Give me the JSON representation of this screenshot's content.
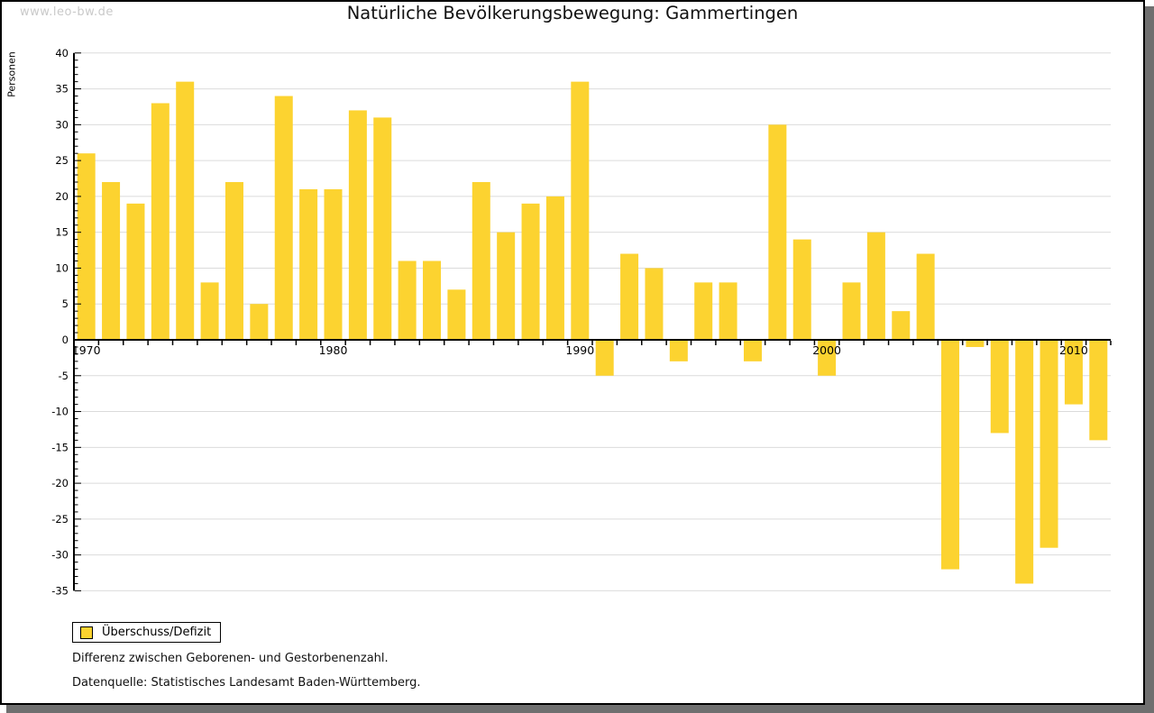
{
  "watermark": "www.leo-bw.de",
  "chart_data": {
    "type": "bar",
    "title": "Natürliche Bevölkerungsbewegung: Gammertingen",
    "ylabel": "Personen",
    "xlabel": "",
    "legend_label": "Überschuss/Defizit",
    "legend_position": "bottom-left",
    "grid": true,
    "bar_color": "#FCD330",
    "gridline_color": "#dbdbdb",
    "ylim": [
      -35,
      40
    ],
    "ytick_step": 5,
    "yticks": [
      -35,
      -30,
      -25,
      -20,
      -15,
      -10,
      -5,
      0,
      5,
      10,
      15,
      20,
      25,
      30,
      35,
      40
    ],
    "xticks_labeled": [
      1970,
      1980,
      1990,
      2000,
      2010
    ],
    "categories": [
      1970,
      1971,
      1972,
      1973,
      1974,
      1975,
      1976,
      1977,
      1978,
      1979,
      1980,
      1981,
      1982,
      1983,
      1984,
      1985,
      1986,
      1987,
      1988,
      1989,
      1990,
      1991,
      1992,
      1993,
      1994,
      1995,
      1996,
      1997,
      1998,
      1999,
      2000,
      2001,
      2002,
      2003,
      2004,
      2005,
      2006,
      2007,
      2008,
      2009,
      2010,
      2011
    ],
    "values": [
      26,
      22,
      19,
      33,
      36,
      8,
      22,
      5,
      34,
      21,
      21,
      32,
      31,
      11,
      11,
      7,
      22,
      15,
      19,
      20,
      36,
      -5,
      12,
      10,
      -3,
      8,
      8,
      -3,
      30,
      14,
      -5,
      8,
      15,
      4,
      12,
      -32,
      -1,
      -13,
      -34,
      -29,
      -9,
      -14
    ]
  },
  "footnotes": [
    "Differenz zwischen Geborenen- und Gestorbenenzahl.",
    "Datenquelle: Statistisches Landesamt Baden-Württemberg."
  ]
}
